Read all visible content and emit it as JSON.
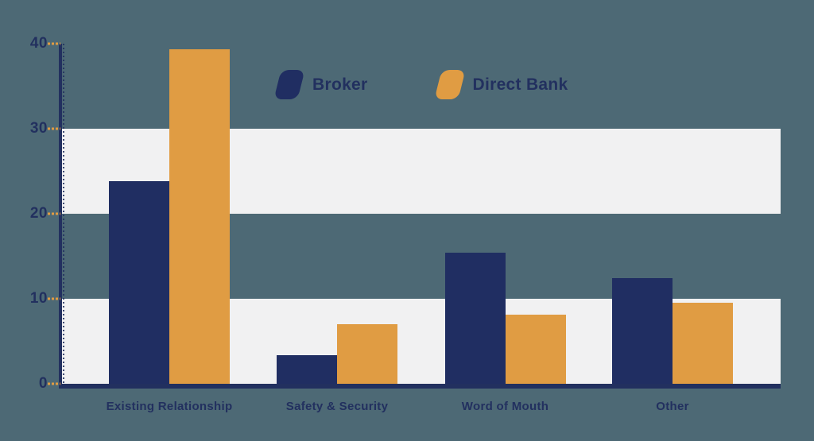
{
  "chart_data": {
    "type": "bar",
    "title": "",
    "xlabel": "",
    "ylabel": "",
    "categories": [
      "Existing Relationship",
      "Safety & Security",
      "Word of Mouth",
      "Other"
    ],
    "series": [
      {
        "name": "Broker",
        "color": "#202e62",
        "values": [
          23.8,
          3.4,
          15.4,
          12.4
        ]
      },
      {
        "name": "Direct Bank",
        "color": "#e09c43",
        "values": [
          39.3,
          7.0,
          8.1,
          9.5
        ]
      }
    ],
    "ylim": [
      0,
      40
    ],
    "yticks": [
      0,
      10,
      20,
      30,
      40
    ],
    "grid_bands": [
      [
        20,
        30
      ],
      [
        0,
        10
      ]
    ],
    "legend_position": "top-center",
    "colors": {
      "background": "#4d6975",
      "band": "#f1f1f2",
      "axis": "#22305f",
      "text": "#22305f",
      "tick_dash": "#e09c43"
    }
  }
}
